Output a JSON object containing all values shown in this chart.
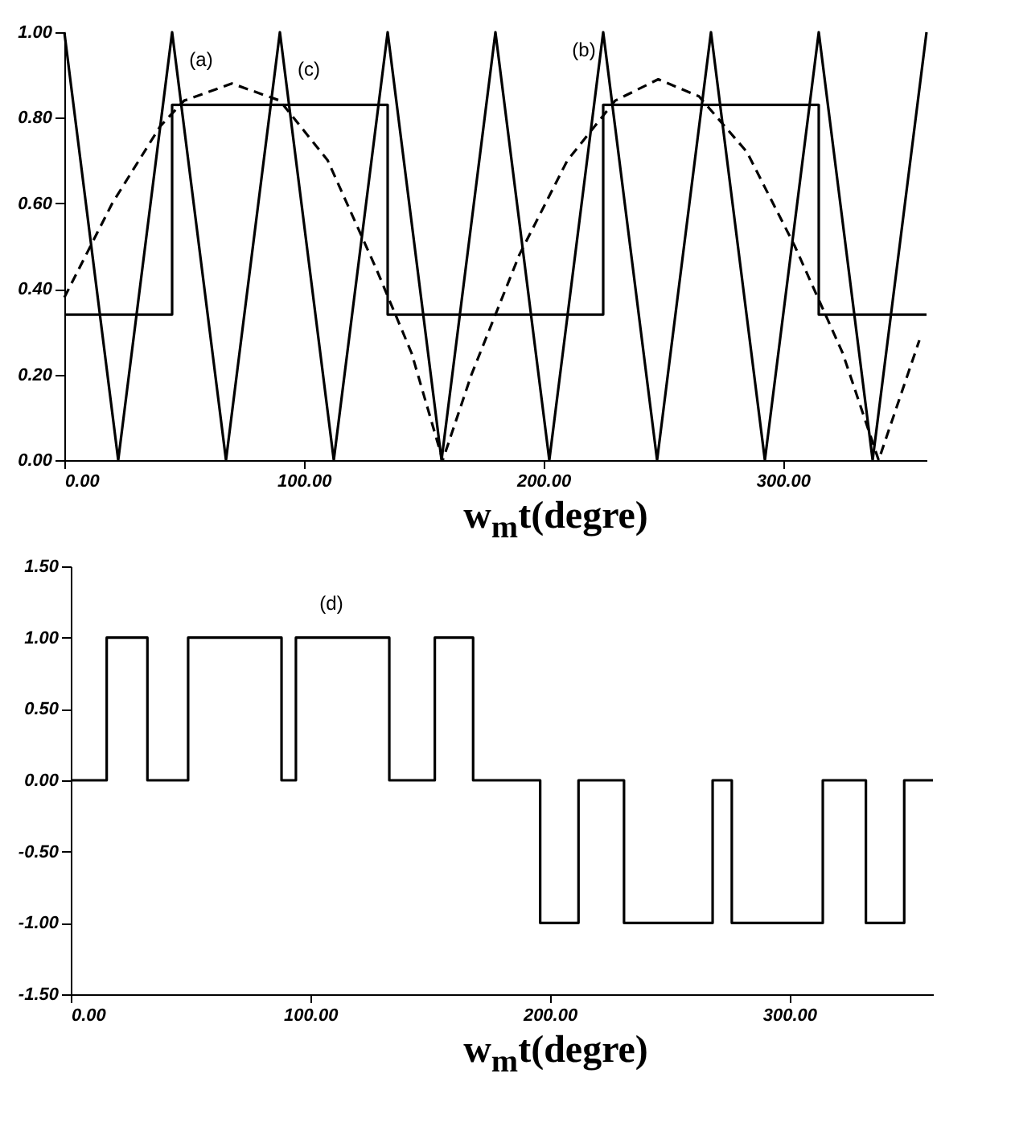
{
  "chart_data": [
    {
      "type": "line",
      "xlabel": "w$_{m}$t(degre)",
      "xlim": [
        0,
        360
      ],
      "ylim": [
        0,
        1
      ],
      "xticks": [
        {
          "value": 0,
          "label": "0.00"
        },
        {
          "value": 100,
          "label": "100.00"
        },
        {
          "value": 200,
          "label": "200.00"
        },
        {
          "value": 300,
          "label": "300.00"
        }
      ],
      "yticks": [
        {
          "value": 0,
          "label": "0.00"
        },
        {
          "value": 0.2,
          "label": "0.20"
        },
        {
          "value": 0.4,
          "label": "0.40"
        },
        {
          "value": 0.6,
          "label": "0.60"
        },
        {
          "value": 0.8,
          "label": "0.80"
        },
        {
          "value": 1,
          "label": "1.00"
        }
      ],
      "grid": false,
      "series": [
        {
          "color": "#000000",
          "line_style": "solid",
          "x": [
            0,
            22.5,
            45,
            67.5,
            90,
            112.5,
            135,
            157.5,
            180,
            202.5,
            225,
            247.5,
            270,
            292.5,
            315,
            337.5,
            360
          ],
          "values": [
            1,
            0,
            1,
            0,
            1,
            0,
            1,
            0,
            1,
            0,
            1,
            0,
            1,
            0,
            1,
            0,
            1
          ]
        },
        {
          "color": "#000000",
          "line_style": "dashed",
          "x": [
            0,
            20,
            40,
            50,
            70,
            90,
            110,
            130,
            145,
            158,
            170,
            190,
            210,
            230,
            248,
            265,
            285,
            305,
            325,
            340,
            357
          ],
          "values": [
            0.38,
            0.6,
            0.78,
            0.84,
            0.88,
            0.84,
            0.7,
            0.45,
            0.25,
            0,
            0.2,
            0.48,
            0.7,
            0.84,
            0.89,
            0.85,
            0.72,
            0.5,
            0.25,
            0,
            0.28
          ]
        },
        {
          "type": "step",
          "color": "#000000",
          "line_style": "solid",
          "x": [
            0,
            45,
            135,
            225,
            315,
            360
          ],
          "values": [
            0.34,
            0.83,
            0.34,
            0.83,
            0.34,
            0.34
          ]
        }
      ],
      "annotations": [
        "(a)",
        "(c)",
        "(b)"
      ]
    },
    {
      "type": "step",
      "xlabel": "w$_{m}$t(degre)",
      "xlim": [
        0,
        360
      ],
      "ylim": [
        -1.5,
        1.5
      ],
      "xticks": [
        {
          "value": 0,
          "label": "0.00"
        },
        {
          "value": 100,
          "label": "100.00"
        },
        {
          "value": 200,
          "label": "200.00"
        },
        {
          "value": 300,
          "label": "300.00"
        }
      ],
      "yticks": [
        {
          "value": -1.5,
          "label": "-1.50"
        },
        {
          "value": -1,
          "label": "-1.00"
        },
        {
          "value": -0.5,
          "label": "-0.50"
        },
        {
          "value": 0,
          "label": "0.00"
        },
        {
          "value": 0.5,
          "label": "0.50"
        },
        {
          "value": 1,
          "label": "1.00"
        },
        {
          "value": 1.5,
          "label": "1.50"
        }
      ],
      "grid": false,
      "series": [
        {
          "color": "#000000",
          "line_style": "solid",
          "x": [
            0,
            15,
            32,
            49,
            88,
            94,
            133,
            152,
            168,
            196,
            212,
            231,
            268,
            276,
            314,
            332,
            348,
            360
          ],
          "values": [
            0,
            1,
            0,
            1,
            0,
            1,
            0,
            1,
            0,
            -1,
            0,
            -1,
            0,
            -1,
            0,
            -1,
            0,
            0
          ]
        }
      ],
      "annotations": [
        "(d)"
      ]
    }
  ]
}
